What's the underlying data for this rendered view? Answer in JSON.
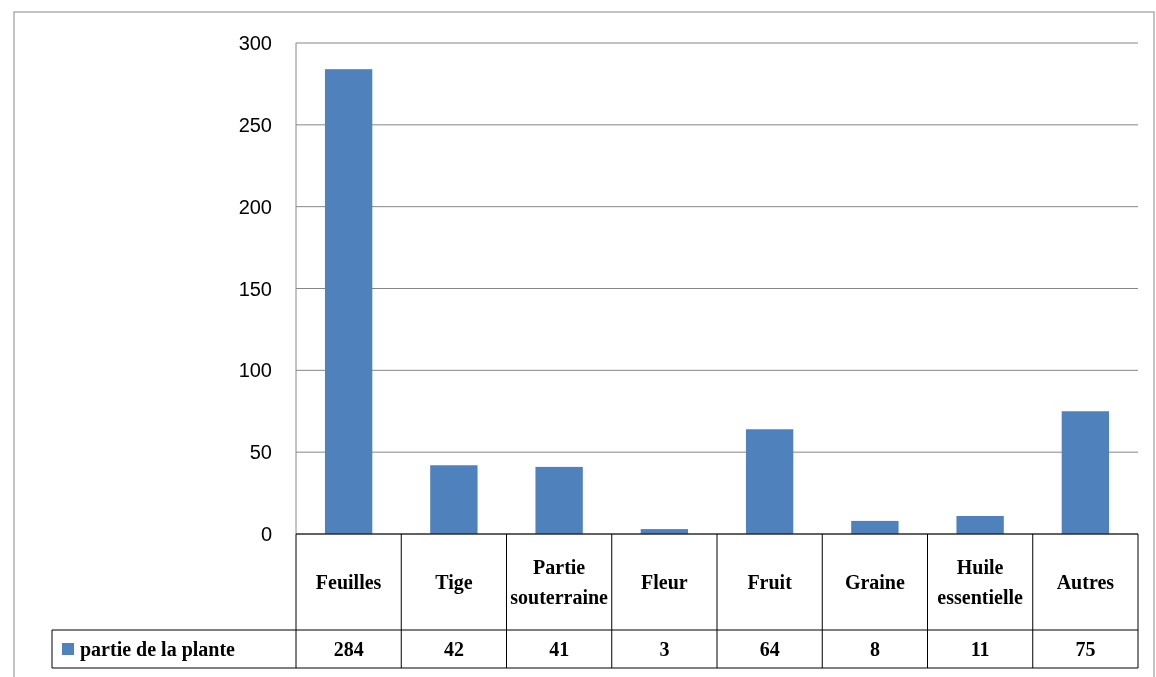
{
  "chart_data": {
    "type": "bar",
    "categories": [
      "Feuilles",
      "Tige",
      "Partie souterraine",
      "Fleur",
      "Fruit",
      "Graine",
      "Huile essentielle",
      "Autres"
    ],
    "series": [
      {
        "name": "partie de la plante",
        "color": "#4f81bd",
        "values": [
          284,
          42,
          41,
          3,
          64,
          8,
          11,
          75
        ]
      }
    ],
    "ylim": [
      0,
      300
    ],
    "yticks": [
      0,
      50,
      100,
      150,
      200,
      250,
      300
    ],
    "grid": "y",
    "legend": "bottom",
    "data_labels": true
  }
}
